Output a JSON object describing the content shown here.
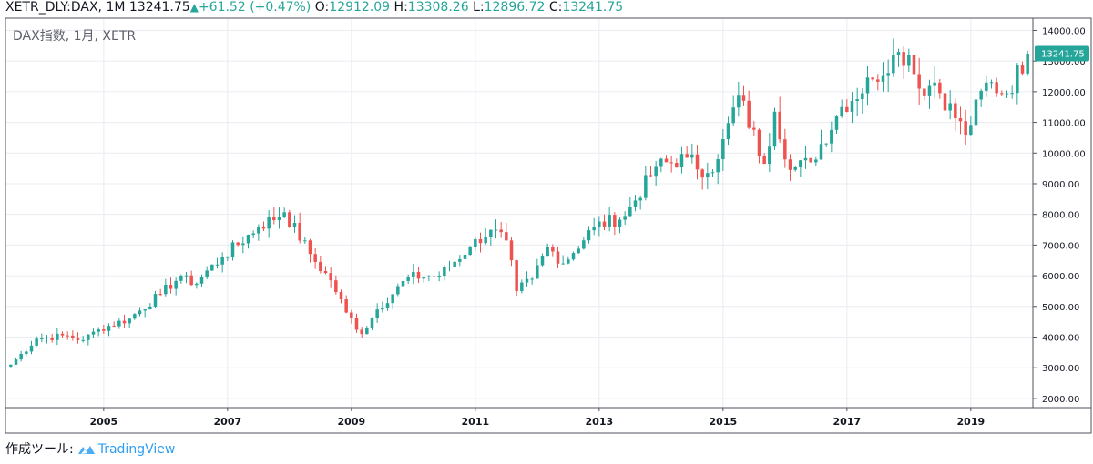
{
  "header": {
    "symbol": "XETR_DLY:DAX, 1M",
    "last": "13241.75",
    "change": "+61.52 (+0.47%)",
    "open_label": "O:",
    "open": "12912.09",
    "high_label": "H:",
    "high": "13308.26",
    "low_label": "L:",
    "low": "12896.72",
    "close_label": "C:",
    "close": "13241.75"
  },
  "footer": {
    "made_with": "作成ツール:",
    "brand": "TradingView"
  },
  "colors": {
    "up": "#26a69a",
    "down": "#ef5350",
    "grid": "#e9ecf1",
    "axis": "#50535e",
    "last_price_bg": "#26a69a"
  },
  "chart_data": {
    "type": "candlestick",
    "title": "DAX指数, 1月, XETR",
    "x_ticks": [
      "2005",
      "2007",
      "2009",
      "2011",
      "2013",
      "2015",
      "2017",
      "2019"
    ],
    "y_ticks": [
      2000,
      3000,
      4000,
      5000,
      6000,
      7000,
      8000,
      9000,
      10000,
      11000,
      12000,
      13000,
      14000
    ],
    "y_tick_labels": [
      "2000.00",
      "3000.00",
      "4000.00",
      "5000.00",
      "6000.00",
      "7000.00",
      "8000.00",
      "9000.00",
      "10000.00",
      "11000.00",
      "12000.00",
      "13000.00",
      "14000.00"
    ],
    "ylim": [
      1700,
      14400
    ],
    "xlim": [
      "2003-07",
      "2019-12"
    ],
    "last_price_label": "13241.75",
    "last_price": 13241.75,
    "grid": true,
    "anchors": [
      [
        "2003-07",
        3100
      ],
      [
        "2003-12",
        3950
      ],
      [
        "2004-06",
        4050
      ],
      [
        "2004-09",
        3900
      ],
      [
        "2004-12",
        4250
      ],
      [
        "2005-06",
        4600
      ],
      [
        "2005-12",
        5400
      ],
      [
        "2006-04",
        6000
      ],
      [
        "2006-06",
        5700
      ],
      [
        "2006-12",
        6600
      ],
      [
        "2007-07",
        7600
      ],
      [
        "2007-12",
        8070
      ],
      [
        "2008-06",
        6450
      ],
      [
        "2008-09",
        5850
      ],
      [
        "2008-12",
        4800
      ],
      [
        "2009-03",
        4100
      ],
      [
        "2009-06",
        4900
      ],
      [
        "2009-12",
        5950
      ],
      [
        "2010-06",
        6000
      ],
      [
        "2010-12",
        6950
      ],
      [
        "2011-04",
        7500
      ],
      [
        "2011-07",
        7150
      ],
      [
        "2011-09",
        5500
      ],
      [
        "2011-12",
        5900
      ],
      [
        "2012-03",
        6950
      ],
      [
        "2012-06",
        6400
      ],
      [
        "2012-12",
        7600
      ],
      [
        "2013-06",
        7950
      ],
      [
        "2013-12",
        9550
      ],
      [
        "2014-06",
        9850
      ],
      [
        "2014-10",
        9350
      ],
      [
        "2014-12",
        9800
      ],
      [
        "2015-04",
        11900
      ],
      [
        "2015-09",
        9650
      ],
      [
        "2015-11",
        11350
      ],
      [
        "2016-02",
        9450
      ],
      [
        "2016-06",
        9700
      ],
      [
        "2016-12",
        11500
      ],
      [
        "2017-06",
        12400
      ],
      [
        "2017-10",
        13200
      ],
      [
        "2018-01",
        13200
      ],
      [
        "2018-03",
        12100
      ],
      [
        "2018-06",
        12300
      ],
      [
        "2018-12",
        10600
      ],
      [
        "2019-04",
        12300
      ],
      [
        "2019-08",
        11950
      ],
      [
        "2019-12",
        13241.75
      ]
    ]
  }
}
